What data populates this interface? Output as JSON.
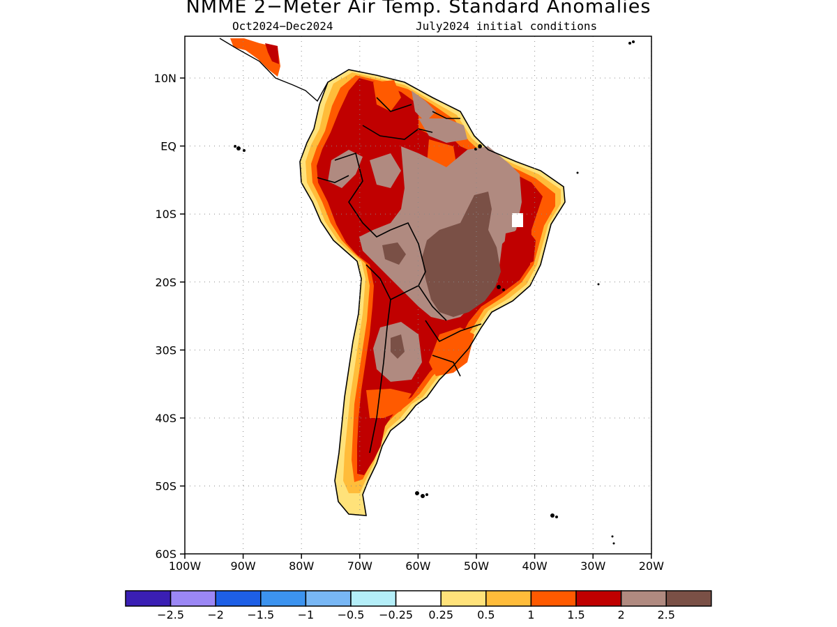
{
  "map": {
    "title": "NMME 2−Meter Air Temp. Standard Anomalies",
    "period": "Oct2024−Dec2024",
    "initial_conditions": "July2024 initial conditions",
    "lat_labels": [
      "10N",
      "EQ",
      "10S",
      "20S",
      "30S",
      "40S",
      "50S",
      "60S"
    ],
    "lon_labels": [
      "100W",
      "90W",
      "80W",
      "70W",
      "60W",
      "50W",
      "40W",
      "30W",
      "20W"
    ],
    "region": "South America",
    "gridlines": "dotted"
  },
  "colorbar": {
    "colors": [
      "#3a1fb4",
      "#9b87f5",
      "#1e5fe6",
      "#3c93ef",
      "#78b7f5",
      "#b4eef8",
      "#ffffff",
      "#ffe27a",
      "#ffbc3a",
      "#ff5a00",
      "#c00000",
      "#b08a80",
      "#7a5046"
    ],
    "labels": [
      "−2.5",
      "−2",
      "−1.5",
      "−1",
      "−0.5",
      "−0.25",
      "0.25",
      "0.5",
      "1",
      "1.5",
      "2",
      "2.5"
    ]
  },
  "legend_colors": {
    "light_yellow": "#ffe27a",
    "gold": "#ffbc3a",
    "orange": "#ff5a00",
    "red": "#c00000",
    "light_brown": "#b08a80",
    "dark_brown": "#7a5046"
  }
}
